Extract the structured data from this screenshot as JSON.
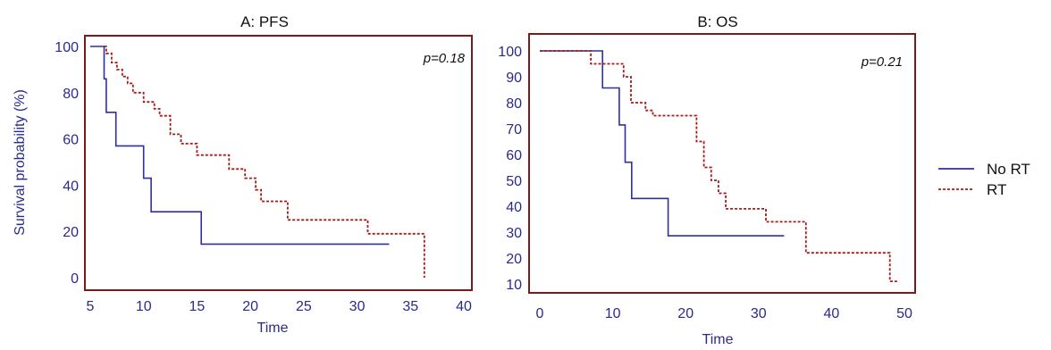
{
  "chart_data": [
    {
      "type": "line",
      "title": "A: PFS",
      "xlabel": "Time",
      "ylabel": "Survival probability (%)",
      "annotation": "p=0.18",
      "xlim": [
        5,
        40
      ],
      "ylim": [
        0,
        100
      ],
      "xticks": [
        "5",
        "10",
        "15",
        "20",
        "25",
        "30",
        "35",
        "40"
      ],
      "yticks": [
        "0",
        "20",
        "40",
        "60",
        "80",
        "100"
      ],
      "grid": false,
      "series": [
        {
          "name": "No RT",
          "color": "#2f2f9e",
          "style": "solid",
          "x": [
            5,
            6.2,
            6.3,
            6.5,
            7.3,
            7.4,
            9.8,
            10.0,
            10.6,
            10.7,
            15.3,
            15.4,
            33.0
          ],
          "y": [
            100,
            100,
            86,
            71.5,
            71.5,
            57,
            57,
            43,
            43,
            28.5,
            28.5,
            14.5,
            14.5
          ]
        },
        {
          "name": "RT",
          "color": "#a51c1c",
          "style": "dashed",
          "x": [
            6.3,
            6.5,
            7.0,
            7.5,
            8.0,
            8.5,
            9.0,
            10.0,
            11.0,
            11.5,
            12.5,
            13.5,
            15.0,
            18.0,
            19.5,
            20.5,
            21.0,
            23.5,
            31.0,
            36.2,
            36.3
          ],
          "y": [
            100,
            97,
            93,
            90,
            87,
            84,
            80,
            76,
            73,
            70,
            62,
            58,
            53,
            47,
            43,
            38,
            33,
            25,
            19,
            19,
            0
          ]
        }
      ]
    },
    {
      "type": "line",
      "title": "B: OS",
      "xlabel": "Time",
      "ylabel": "",
      "annotation": "p=0.21",
      "xlim": [
        0,
        50
      ],
      "ylim": [
        10,
        100
      ],
      "xticks": [
        "0",
        "10",
        "20",
        "30",
        "40",
        "50"
      ],
      "yticks": [
        "10",
        "20",
        "30",
        "40",
        "50",
        "60",
        "70",
        "80",
        "90",
        "100"
      ],
      "grid": false,
      "series": [
        {
          "name": "No RT",
          "color": "#2f2f9e",
          "style": "solid",
          "x": [
            0,
            8.5,
            8.6,
            10.8,
            10.9,
            11.6,
            11.7,
            12.5,
            12.6,
            17.5,
            17.6,
            33.5
          ],
          "y": [
            100,
            100,
            85.7,
            85.7,
            71.4,
            71.4,
            57,
            57,
            43,
            43,
            28.6,
            28.6
          ]
        },
        {
          "name": "RT",
          "color": "#a51c1c",
          "style": "dashed",
          "x": [
            0,
            7.0,
            11.5,
            12.5,
            14.5,
            15.5,
            21.5,
            22.5,
            23.5,
            24.5,
            25.5,
            31.0,
            36.5,
            48.0,
            49.0
          ],
          "y": [
            100,
            95,
            90,
            80,
            77,
            75,
            65,
            55,
            50,
            45,
            39,
            34,
            22,
            11,
            11
          ]
        }
      ]
    }
  ],
  "legend": {
    "position": "right",
    "items": [
      {
        "label": "No RT",
        "color": "#2f2f9e",
        "style": "solid"
      },
      {
        "label": "RT",
        "color": "#a51c1c",
        "style": "dashed"
      }
    ]
  }
}
